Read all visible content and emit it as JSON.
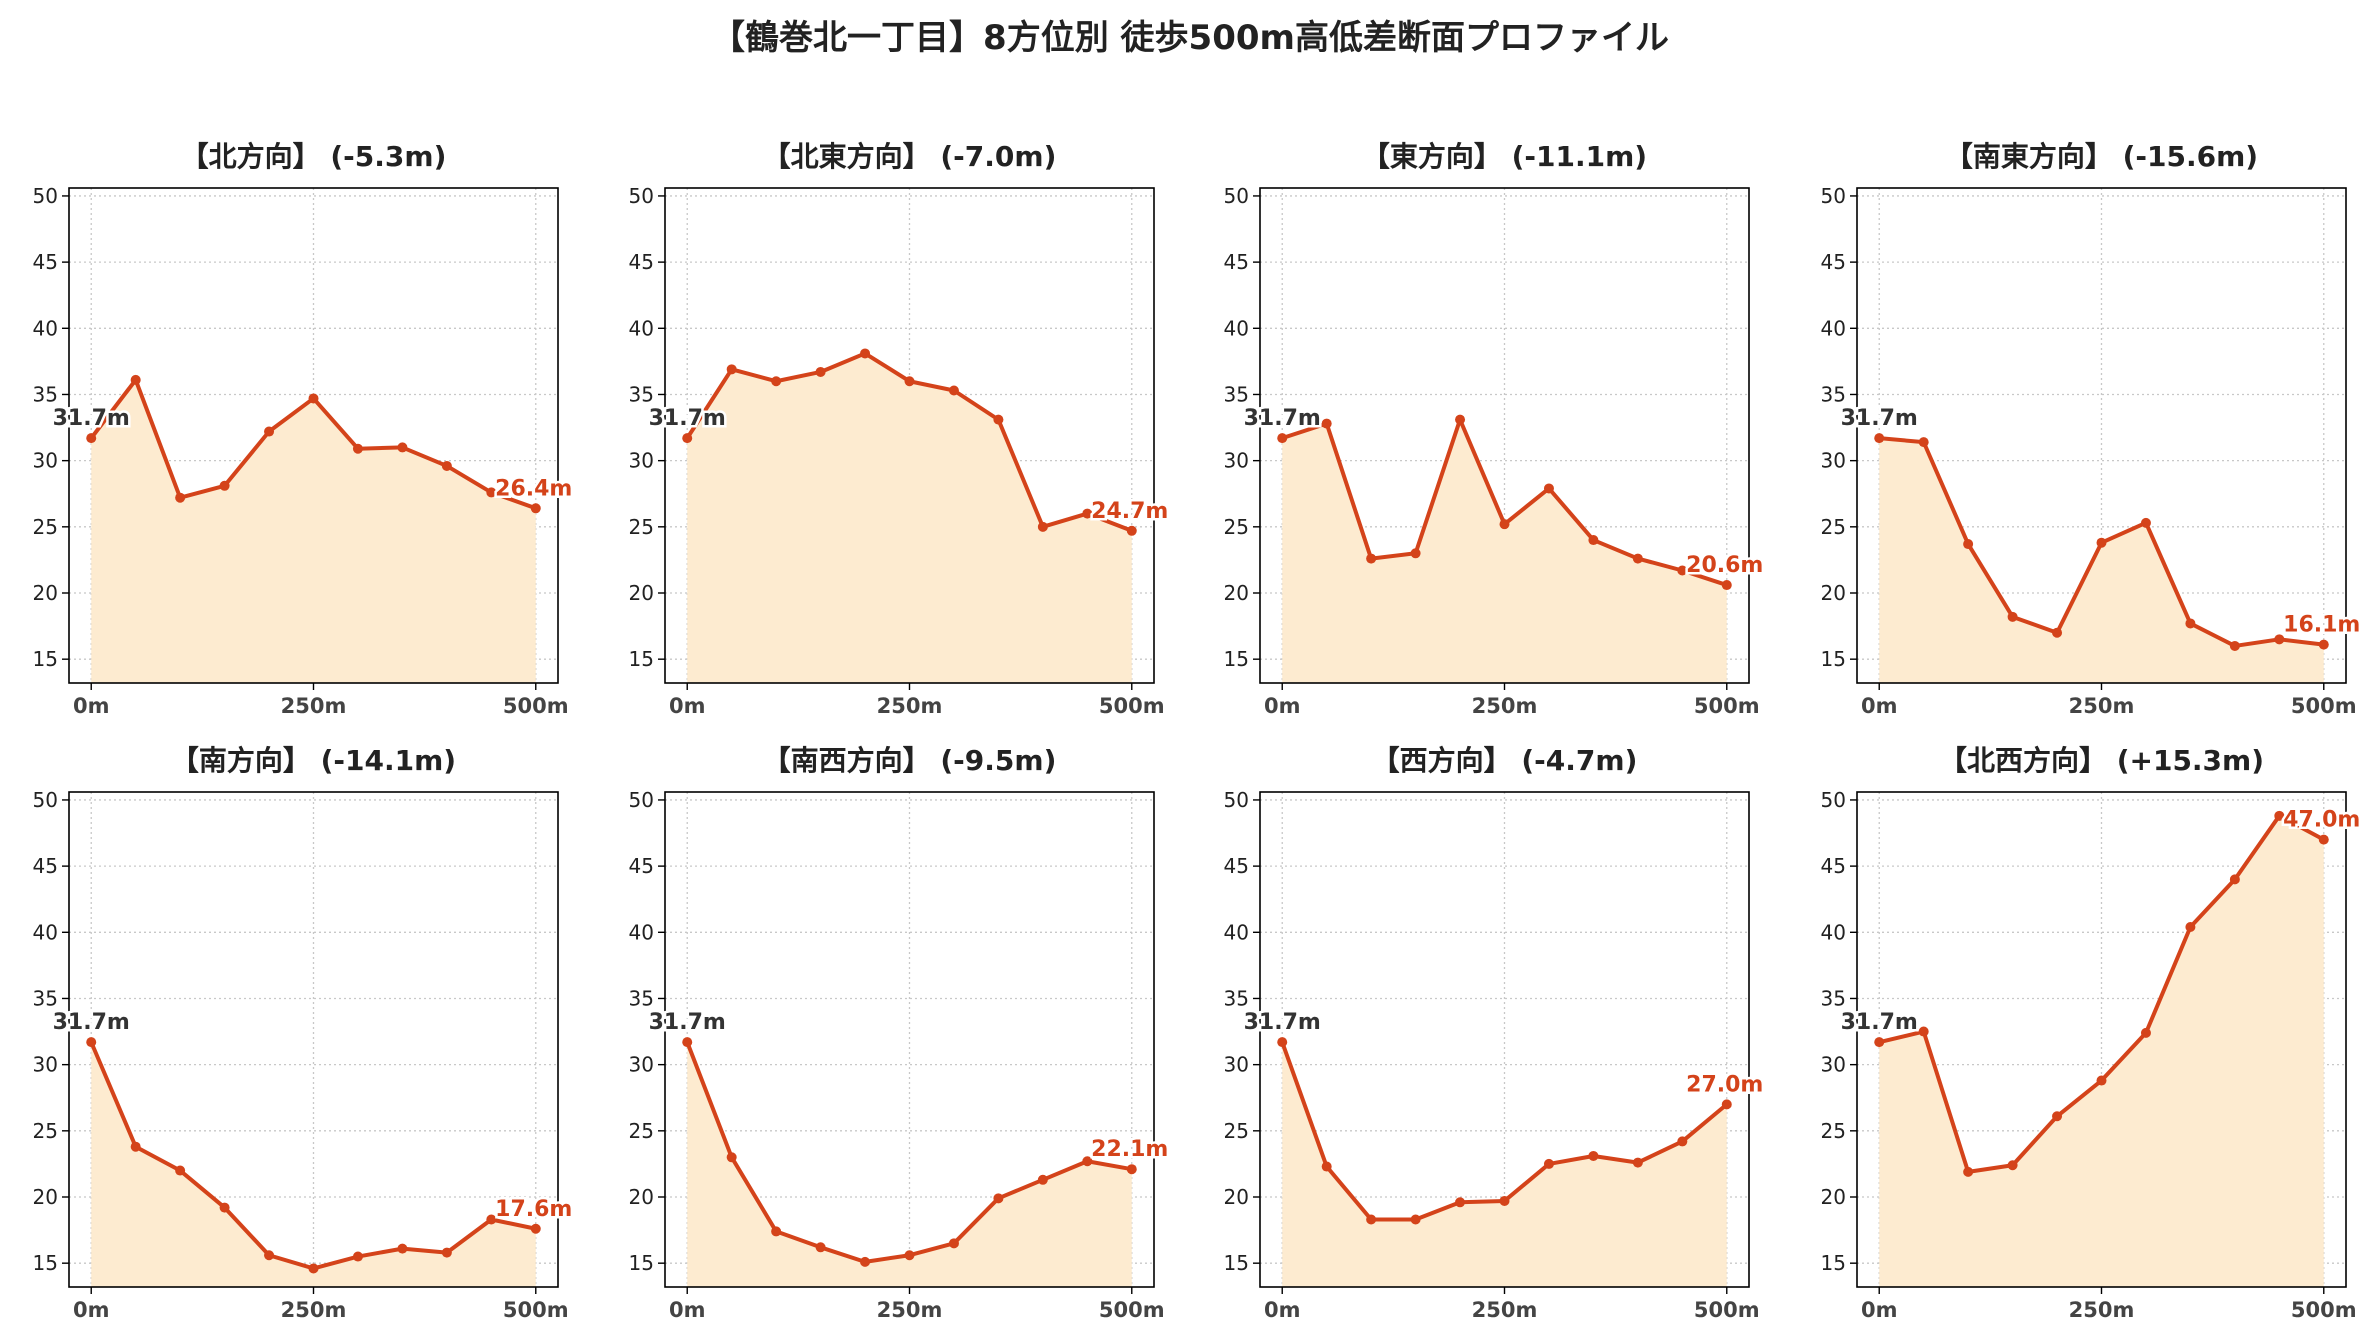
{
  "title": "【鶴巻北一丁目】8方位別 徒歩500m高低差断面プロファイル",
  "colors": {
    "line": "#d4431a",
    "fill": "#fdebd0",
    "start_label": "#333333",
    "end_label": "#d4431a",
    "grid": "#c8c8c8"
  },
  "chart_data": [
    {
      "type": "area",
      "title": "【北方向】 (-5.3m)",
      "x": [
        0,
        50,
        100,
        150,
        200,
        250,
        300,
        350,
        400,
        450,
        500
      ],
      "values": [
        31.7,
        36.1,
        27.2,
        28.1,
        32.2,
        34.7,
        30.9,
        31.0,
        29.6,
        27.6,
        26.4
      ],
      "xticks": [
        "0m",
        "250m",
        "500m"
      ],
      "yticks": [
        "15",
        "20",
        "25",
        "30",
        "35",
        "40",
        "45",
        "50"
      ],
      "ylim": [
        13.2,
        50.6
      ],
      "start_label": "31.7m",
      "end_label": "26.4m",
      "grid": true
    },
    {
      "type": "area",
      "title": "【北東方向】 (-7.0m)",
      "x": [
        0,
        50,
        100,
        150,
        200,
        250,
        300,
        350,
        400,
        450,
        500
      ],
      "values": [
        31.7,
        36.9,
        36.0,
        36.7,
        38.1,
        36.0,
        35.3,
        33.1,
        25.0,
        26.0,
        24.7
      ],
      "xticks": [
        "0m",
        "250m",
        "500m"
      ],
      "yticks": [
        "15",
        "20",
        "25",
        "30",
        "35",
        "40",
        "45",
        "50"
      ],
      "ylim": [
        13.2,
        50.6
      ],
      "start_label": "31.7m",
      "end_label": "24.7m",
      "grid": true
    },
    {
      "type": "area",
      "title": "【東方向】 (-11.1m)",
      "x": [
        0,
        50,
        100,
        150,
        200,
        250,
        300,
        350,
        400,
        450,
        500
      ],
      "values": [
        31.7,
        32.8,
        22.6,
        23.0,
        33.1,
        25.2,
        27.9,
        24.0,
        22.6,
        21.7,
        20.6
      ],
      "xticks": [
        "0m",
        "250m",
        "500m"
      ],
      "yticks": [
        "15",
        "20",
        "25",
        "30",
        "35",
        "40",
        "45",
        "50"
      ],
      "ylim": [
        13.2,
        50.6
      ],
      "start_label": "31.7m",
      "end_label": "20.6m",
      "grid": true
    },
    {
      "type": "area",
      "title": "【南東方向】 (-15.6m)",
      "x": [
        0,
        50,
        100,
        150,
        200,
        250,
        300,
        350,
        400,
        450,
        500
      ],
      "values": [
        31.7,
        31.4,
        23.7,
        18.2,
        17.0,
        23.8,
        25.3,
        17.7,
        16.0,
        16.5,
        16.1
      ],
      "xticks": [
        "0m",
        "250m",
        "500m"
      ],
      "yticks": [
        "15",
        "20",
        "25",
        "30",
        "35",
        "40",
        "45",
        "50"
      ],
      "ylim": [
        13.2,
        50.6
      ],
      "start_label": "31.7m",
      "end_label": "16.1m",
      "grid": true
    },
    {
      "type": "area",
      "title": "【南方向】 (-14.1m)",
      "x": [
        0,
        50,
        100,
        150,
        200,
        250,
        300,
        350,
        400,
        450,
        500
      ],
      "values": [
        31.7,
        23.8,
        22.0,
        19.2,
        15.6,
        14.6,
        15.5,
        16.1,
        15.8,
        18.3,
        17.6
      ],
      "xticks": [
        "0m",
        "250m",
        "500m"
      ],
      "yticks": [
        "15",
        "20",
        "25",
        "30",
        "35",
        "40",
        "45",
        "50"
      ],
      "ylim": [
        13.2,
        50.6
      ],
      "start_label": "31.7m",
      "end_label": "17.6m",
      "grid": true
    },
    {
      "type": "area",
      "title": "【南西方向】 (-9.5m)",
      "x": [
        0,
        50,
        100,
        150,
        200,
        250,
        300,
        350,
        400,
        450,
        500
      ],
      "values": [
        31.7,
        23.0,
        17.4,
        16.2,
        15.1,
        15.6,
        16.5,
        19.9,
        21.3,
        22.7,
        22.1
      ],
      "xticks": [
        "0m",
        "250m",
        "500m"
      ],
      "yticks": [
        "15",
        "20",
        "25",
        "30",
        "35",
        "40",
        "45",
        "50"
      ],
      "ylim": [
        13.2,
        50.6
      ],
      "start_label": "31.7m",
      "end_label": "22.1m",
      "grid": true
    },
    {
      "type": "area",
      "title": "【西方向】 (-4.7m)",
      "x": [
        0,
        50,
        100,
        150,
        200,
        250,
        300,
        350,
        400,
        450,
        500
      ],
      "values": [
        31.7,
        22.3,
        18.3,
        18.3,
        19.6,
        19.7,
        22.5,
        23.1,
        22.6,
        24.2,
        27.0
      ],
      "xticks": [
        "0m",
        "250m",
        "500m"
      ],
      "yticks": [
        "15",
        "20",
        "25",
        "30",
        "35",
        "40",
        "45",
        "50"
      ],
      "ylim": [
        13.2,
        50.6
      ],
      "start_label": "31.7m",
      "end_label": "27.0m",
      "grid": true
    },
    {
      "type": "area",
      "title": "【北西方向】 (+15.3m)",
      "x": [
        0,
        50,
        100,
        150,
        200,
        250,
        300,
        350,
        400,
        450,
        500
      ],
      "values": [
        31.7,
        32.5,
        21.9,
        22.4,
        26.1,
        28.8,
        32.4,
        40.4,
        44.0,
        48.8,
        47.0
      ],
      "xticks": [
        "0m",
        "250m",
        "500m"
      ],
      "yticks": [
        "15",
        "20",
        "25",
        "30",
        "35",
        "40",
        "45",
        "50"
      ],
      "ylim": [
        13.2,
        50.6
      ],
      "start_label": "31.7m",
      "end_label": "47.0m",
      "grid": true
    }
  ]
}
